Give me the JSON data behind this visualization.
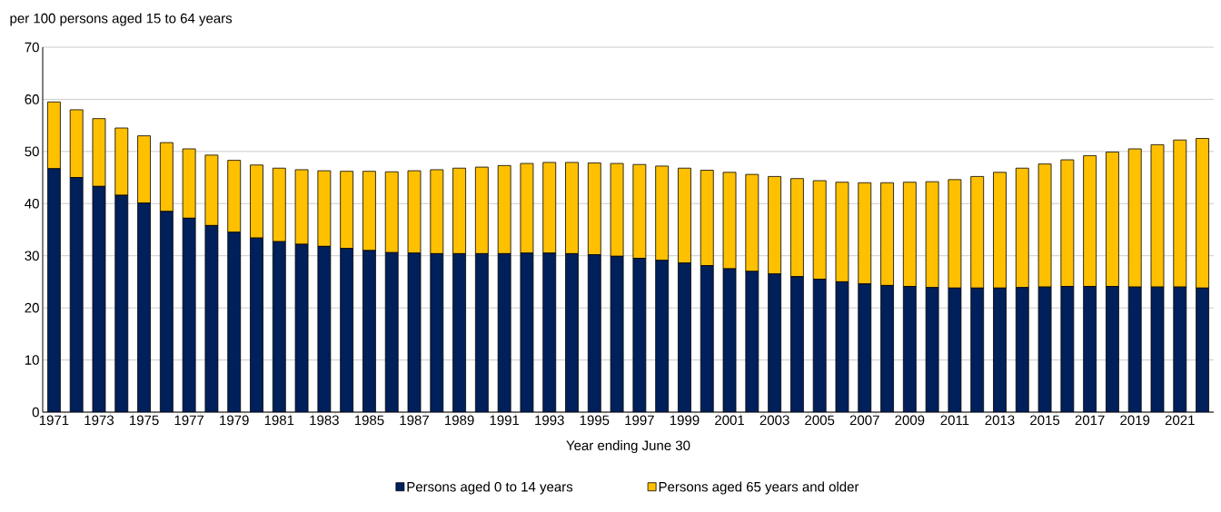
{
  "chart_data": {
    "type": "bar",
    "stacked": true,
    "ylabel": "per 100 persons aged 15 to 64 years",
    "xlabel": "Year ending June 30",
    "categories": [
      "1971",
      null,
      "1973",
      null,
      "1975",
      null,
      "1977",
      null,
      "1979",
      null,
      "1981",
      null,
      "1983",
      null,
      "1985",
      null,
      "1987",
      null,
      "1989",
      null,
      "1991",
      null,
      "1993",
      null,
      "1995",
      null,
      "1997",
      null,
      "1999",
      null,
      "2001",
      null,
      "2003",
      null,
      "2005",
      null,
      "2007",
      null,
      "2009",
      null,
      "2011",
      null,
      "2013",
      null,
      "2015",
      null,
      "2017",
      null,
      "2019",
      null,
      "2021",
      null
    ],
    "series": [
      {
        "name": "Persons aged 0 to 14 years",
        "color": "#00205b",
        "values": [
          46.7,
          45.0,
          43.3,
          41.6,
          40.1,
          38.5,
          37.2,
          35.8,
          34.5,
          33.4,
          32.7,
          32.2,
          31.8,
          31.4,
          31.0,
          30.6,
          30.5,
          30.4,
          30.4,
          30.4,
          30.4,
          30.5,
          30.5,
          30.4,
          30.2,
          29.9,
          29.5,
          29.1,
          28.6,
          28.1,
          27.5,
          27.0,
          26.5,
          26.0,
          25.5,
          25.0,
          24.6,
          24.3,
          24.1,
          23.9,
          23.8,
          23.8,
          23.8,
          23.9,
          24.0,
          24.1,
          24.1,
          24.1,
          24.0,
          24.0,
          24.0,
          23.8
        ]
      },
      {
        "name": "Persons aged 65 years and older",
        "color": "#ffc000",
        "values": [
          12.8,
          13.0,
          13.0,
          12.9,
          12.9,
          13.2,
          13.3,
          13.5,
          13.8,
          14.0,
          14.1,
          14.3,
          14.5,
          14.8,
          15.2,
          15.5,
          15.8,
          16.1,
          16.4,
          16.6,
          16.9,
          17.2,
          17.4,
          17.5,
          17.6,
          17.8,
          18.0,
          18.1,
          18.2,
          18.3,
          18.5,
          18.6,
          18.7,
          18.8,
          18.9,
          19.1,
          19.4,
          19.7,
          20.0,
          20.3,
          20.8,
          21.4,
          22.2,
          22.9,
          23.6,
          24.3,
          25.1,
          25.8,
          26.5,
          27.3,
          28.2,
          28.7
        ]
      }
    ],
    "ylim": [
      0,
      70
    ],
    "yticks": [
      0,
      10,
      20,
      30,
      40,
      50,
      60,
      70
    ],
    "grid": "y",
    "legend": "bottom"
  }
}
